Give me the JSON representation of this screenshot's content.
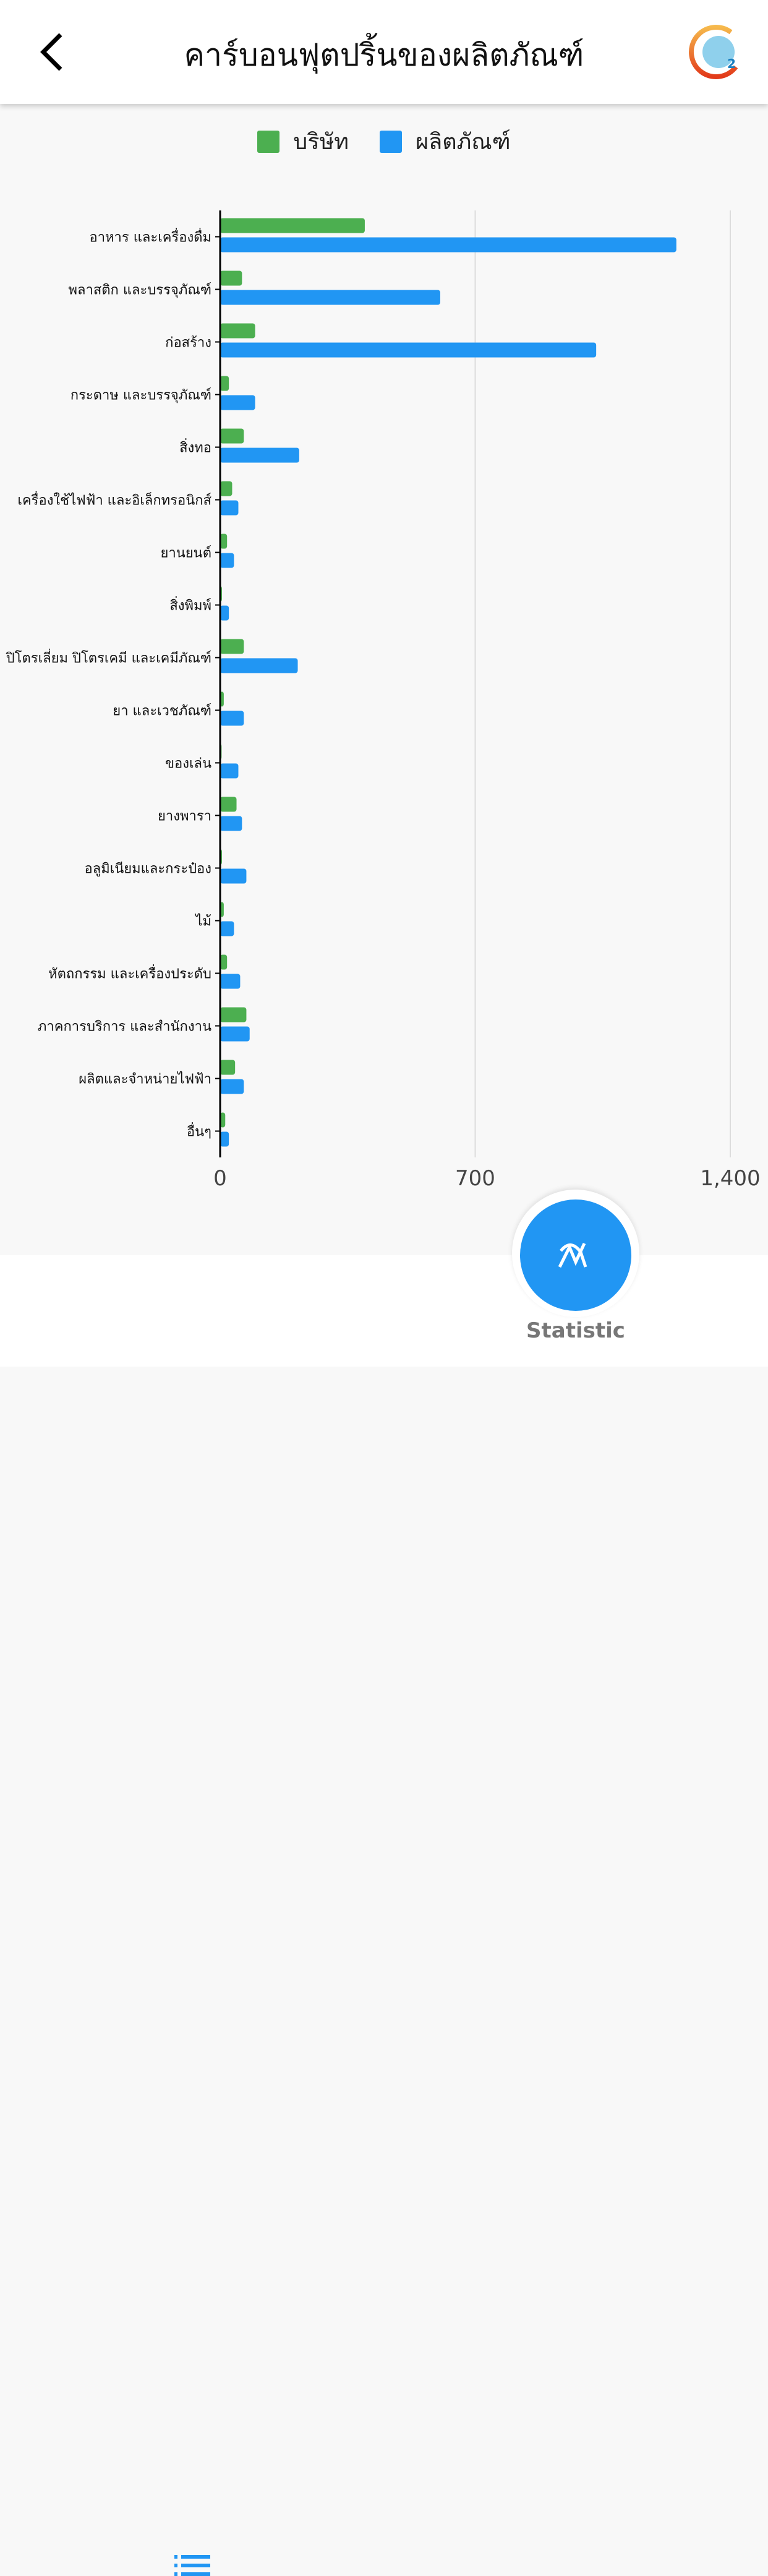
{
  "header": {
    "title": "คาร์บอนฟุตปริ้นของผลิตภัณฑ์",
    "back_icon": "chevron-left-icon",
    "logo_text": "xxx 2"
  },
  "chart_data": {
    "type": "bar",
    "orientation": "horizontal",
    "categories": [
      "อาหาร และเครื่องดื่ม",
      "พลาสติก และบรรจุภัณฑ์",
      "ก่อสร้าง",
      "กระดาษ และบรรจุภัณฑ์",
      "สิ่งทอ",
      "เครื่องใช้ไฟฟ้า และอิเล็กทรอนิกส์",
      "ยานยนต์",
      "สิ่งพิมพ์",
      "ปิโตรเลี่ยม ปิโตรเคมี และเคมีภัณฑ์",
      "ยา และเวชภัณฑ์",
      "ของเล่น",
      "ยางพารา",
      "อลูมิเนียมและกระป๋อง",
      "ไม้",
      "หัตถกรรม และเครื่องประดับ",
      "ภาคการบริการ และสำนักงาน",
      "ผลิตและจำหน่ายไฟฟ้า",
      "อื่นๆ"
    ],
    "series": [
      {
        "name": "บริษัท",
        "color": "#4caf50",
        "values": [
          397,
          60,
          96,
          24,
          65,
          33,
          19,
          5,
          65,
          10,
          4,
          45,
          5,
          10,
          19,
          72,
          41,
          14
        ]
      },
      {
        "name": "ผลิตภัณฑ์",
        "color": "#2196f3",
        "values": [
          1252,
          604,
          1032,
          96,
          217,
          50,
          38,
          24,
          213,
          65,
          50,
          60,
          72,
          38,
          55,
          81,
          65,
          24
        ]
      }
    ],
    "xlim": [
      0,
      1400
    ],
    "x_ticks": [
      "0",
      "700",
      "1,400"
    ],
    "grid": true,
    "legend_position": "top"
  },
  "nav": {
    "list_icon": "list-icon",
    "statistic_icon": "chart-line-icon",
    "statistic_label": "Statistic",
    "accent": "#2196f3"
  }
}
